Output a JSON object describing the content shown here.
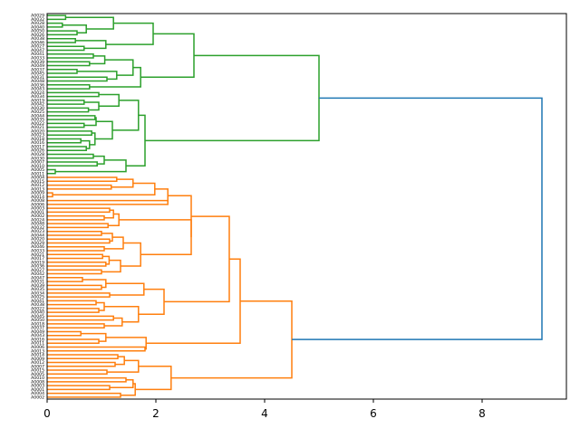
{
  "chart_data": {
    "type": "dendrogram",
    "orientation": "left",
    "title": "",
    "xlabel": "",
    "ylabel": "",
    "xlim": [
      0,
      9.55
    ],
    "x_ticks": [
      0,
      2,
      4,
      6,
      8
    ],
    "x_tick_labels": [
      "0",
      "2",
      "4",
      "6",
      "8"
    ],
    "colors": {
      "cluster_1": "#2ca02c",
      "cluster_2": "#ff7f0e",
      "root": "#1f77b4"
    },
    "leaf_labels": [
      "A0029",
      "A0032",
      "A0028",
      "A0040",
      "A0050",
      "A0026",
      "A0038",
      "A0046",
      "A0027",
      "A0047",
      "A0041",
      "A0033",
      "A0039",
      "A0049",
      "A0037",
      "A0045",
      "A0031",
      "A0048",
      "A0036",
      "A0043",
      "A0024",
      "A0034",
      "A0019",
      "A0042",
      "A0030",
      "A0025",
      "A0044",
      "A0035",
      "A0022",
      "A0021",
      "A0020",
      "A0023",
      "A0018",
      "A0016",
      "A0017",
      "A0026",
      "A0028",
      "A0030",
      "A0007",
      "A0010",
      "A0005",
      "A0011",
      "A0004",
      "A0015",
      "A0012",
      "A0013",
      "A0009",
      "A0014",
      "A0008",
      "A0006",
      "A0003",
      "A0001",
      "A0002",
      "A0024",
      "A0048",
      "A0032",
      "A0023",
      "A0044",
      "A0020",
      "A0029",
      "A0046",
      "A0033",
      "A0021",
      "A0017",
      "A0019",
      "A0036",
      "A0027",
      "A0042",
      "A0047",
      "A0031",
      "A0039",
      "A0035",
      "A0034",
      "A0025",
      "A0041",
      "A0038",
      "A0022",
      "A0040",
      "A0045",
      "A0050",
      "A0018",
      "A0037",
      "A0049",
      "A0043",
      "A0016",
      "A0011",
      "A0006",
      "A0013",
      "A0014",
      "A0009",
      "A0012",
      "A0007",
      "A0015",
      "A0005",
      "A0010",
      "A0008",
      "A0003",
      "A0001",
      "A0004",
      "A0002"
    ],
    "merges": [
      {
        "a": 0,
        "b": 1,
        "height": 0.34,
        "color": "cluster_1"
      },
      {
        "a": 2,
        "b": 3,
        "height": 0.28,
        "color": "cluster_1"
      },
      {
        "a": 4,
        "b": 5,
        "height": 0.55,
        "color": "cluster_1"
      },
      {
        "a": 101,
        "b": 102,
        "height": 0.72,
        "color": "cluster_1"
      },
      {
        "a": 100,
        "b": 103,
        "height": 1.22,
        "color": "cluster_1"
      },
      {
        "a": 6,
        "b": 7,
        "height": 0.52,
        "color": "cluster_1"
      },
      {
        "a": 8,
        "b": 9,
        "height": 0.68,
        "color": "cluster_1"
      },
      {
        "a": 105,
        "b": 106,
        "height": 1.08,
        "color": "cluster_1"
      },
      {
        "a": 104,
        "b": 107,
        "height": 1.95,
        "color": "cluster_1"
      },
      {
        "a": 10,
        "b": 11,
        "height": 0.85,
        "color": "cluster_1"
      },
      {
        "a": 12,
        "b": 13,
        "height": 0.78,
        "color": "cluster_1"
      },
      {
        "a": 109,
        "b": 110,
        "height": 1.06,
        "color": "cluster_1"
      },
      {
        "a": 14,
        "b": 15,
        "height": 0.55,
        "color": "cluster_1"
      },
      {
        "a": 16,
        "b": 17,
        "height": 1.1,
        "color": "cluster_1"
      },
      {
        "a": 112,
        "b": 113,
        "height": 1.28,
        "color": "cluster_1"
      },
      {
        "a": 111,
        "b": 114,
        "height": 1.58,
        "color": "cluster_1"
      },
      {
        "a": 18,
        "b": 19,
        "height": 0.78,
        "color": "cluster_1"
      },
      {
        "a": 115,
        "b": 116,
        "height": 1.72,
        "color": "cluster_1"
      },
      {
        "a": 108,
        "b": 117,
        "height": 2.7,
        "color": "cluster_1"
      },
      {
        "a": 20,
        "b": 21,
        "height": 0.95,
        "color": "cluster_1"
      },
      {
        "a": 22,
        "b": 23,
        "height": 0.68,
        "color": "cluster_1"
      },
      {
        "a": 24,
        "b": 25,
        "height": 0.76,
        "color": "cluster_1"
      },
      {
        "a": 120,
        "b": 121,
        "height": 0.95,
        "color": "cluster_1"
      },
      {
        "a": 119,
        "b": 122,
        "height": 1.32,
        "color": "cluster_1"
      },
      {
        "a": 26,
        "b": 27,
        "height": 0.88,
        "color": "cluster_1"
      },
      {
        "a": 28,
        "b": 29,
        "height": 0.68,
        "color": "cluster_1"
      },
      {
        "a": 124,
        "b": 125,
        "height": 0.9,
        "color": "cluster_1"
      },
      {
        "a": 30,
        "b": 31,
        "height": 0.82,
        "color": "cluster_1"
      },
      {
        "a": 32,
        "b": 33,
        "height": 0.62,
        "color": "cluster_1"
      },
      {
        "a": 34,
        "b": 35,
        "height": 0.72,
        "color": "cluster_1"
      },
      {
        "a": 128,
        "b": 129,
        "height": 0.78,
        "color": "cluster_1"
      },
      {
        "a": 127,
        "b": 130,
        "height": 0.88,
        "color": "cluster_1"
      },
      {
        "a": 126,
        "b": 131,
        "height": 1.2,
        "color": "cluster_1"
      },
      {
        "a": 123,
        "b": 132,
        "height": 1.68,
        "color": "cluster_1"
      },
      {
        "a": 36,
        "b": 37,
        "height": 0.85,
        "color": "cluster_1"
      },
      {
        "a": 38,
        "b": 39,
        "height": 0.92,
        "color": "cluster_1"
      },
      {
        "a": 134,
        "b": 135,
        "height": 1.05,
        "color": "cluster_1"
      },
      {
        "a": 40,
        "b": 41,
        "height": 0.15,
        "color": "cluster_1"
      },
      {
        "a": 136,
        "b": 137,
        "height": 1.45,
        "color": "cluster_1"
      },
      {
        "a": 133,
        "b": 138,
        "height": 1.8,
        "color": "cluster_1"
      },
      {
        "a": 118,
        "b": 139,
        "height": 5.0,
        "color": "cluster_1"
      },
      {
        "a": 42,
        "b": 43,
        "height": 1.28,
        "color": "cluster_2"
      },
      {
        "a": 44,
        "b": 45,
        "height": 1.18,
        "color": "cluster_2"
      },
      {
        "a": 141,
        "b": 142,
        "height": 1.58,
        "color": "cluster_2"
      },
      {
        "a": 46,
        "b": 47,
        "height": 0.1,
        "color": "cluster_2"
      },
      {
        "a": 143,
        "b": 144,
        "height": 1.98,
        "color": "cluster_2"
      },
      {
        "a": 48,
        "b": 49,
        "height": 2.22,
        "color": "cluster_2"
      },
      {
        "a": 145,
        "b": 146,
        "height": 2.22,
        "color": "cluster_2"
      },
      {
        "a": 50,
        "b": 51,
        "height": 1.15,
        "color": "cluster_2"
      },
      {
        "a": 52,
        "b": 53,
        "height": 1.05,
        "color": "cluster_2"
      },
      {
        "a": 148,
        "b": 149,
        "height": 1.22,
        "color": "cluster_2"
      },
      {
        "a": 54,
        "b": 55,
        "height": 1.12,
        "color": "cluster_2"
      },
      {
        "a": 150,
        "b": 151,
        "height": 1.32,
        "color": "cluster_2"
      },
      {
        "a": 56,
        "b": 57,
        "height": 1.0,
        "color": "cluster_2"
      },
      {
        "a": 58,
        "b": 59,
        "height": 1.15,
        "color": "cluster_2"
      },
      {
        "a": 153,
        "b": 154,
        "height": 1.2,
        "color": "cluster_2"
      },
      {
        "a": 60,
        "b": 61,
        "height": 1.05,
        "color": "cluster_2"
      },
      {
        "a": 155,
        "b": 156,
        "height": 1.4,
        "color": "cluster_2"
      },
      {
        "a": 62,
        "b": 63,
        "height": 1.02,
        "color": "cluster_2"
      },
      {
        "a": 64,
        "b": 65,
        "height": 1.08,
        "color": "cluster_2"
      },
      {
        "a": 158,
        "b": 159,
        "height": 1.14,
        "color": "cluster_2"
      },
      {
        "a": 66,
        "b": 67,
        "height": 1.0,
        "color": "cluster_2"
      },
      {
        "a": 160,
        "b": 161,
        "height": 1.35,
        "color": "cluster_2"
      },
      {
        "a": 157,
        "b": 162,
        "height": 1.72,
        "color": "cluster_2"
      },
      {
        "a": 152,
        "b": 163,
        "height": 2.65,
        "color": "cluster_2"
      },
      {
        "a": 147,
        "b": 164,
        "height": 2.65,
        "color": "cluster_2"
      },
      {
        "a": 68,
        "b": 69,
        "height": 0.65,
        "color": "cluster_2"
      },
      {
        "a": 70,
        "b": 71,
        "height": 1.0,
        "color": "cluster_2"
      },
      {
        "a": 166,
        "b": 167,
        "height": 1.08,
        "color": "cluster_2"
      },
      {
        "a": 72,
        "b": 73,
        "height": 1.15,
        "color": "cluster_2"
      },
      {
        "a": 168,
        "b": 169,
        "height": 1.78,
        "color": "cluster_2"
      },
      {
        "a": 74,
        "b": 75,
        "height": 0.9,
        "color": "cluster_2"
      },
      {
        "a": 76,
        "b": 77,
        "height": 0.95,
        "color": "cluster_2"
      },
      {
        "a": 171,
        "b": 172,
        "height": 1.05,
        "color": "cluster_2"
      },
      {
        "a": 78,
        "b": 79,
        "height": 1.22,
        "color": "cluster_2"
      },
      {
        "a": 80,
        "b": 81,
        "height": 1.05,
        "color": "cluster_2"
      },
      {
        "a": 174,
        "b": 175,
        "height": 1.38,
        "color": "cluster_2"
      },
      {
        "a": 173,
        "b": 176,
        "height": 1.68,
        "color": "cluster_2"
      },
      {
        "a": 170,
        "b": 177,
        "height": 2.15,
        "color": "cluster_2"
      },
      {
        "a": 165,
        "b": 178,
        "height": 3.35,
        "color": "cluster_2"
      },
      {
        "a": 82,
        "b": 83,
        "height": 0.62,
        "color": "cluster_2"
      },
      {
        "a": 84,
        "b": 85,
        "height": 0.95,
        "color": "cluster_2"
      },
      {
        "a": 180,
        "b": 181,
        "height": 1.08,
        "color": "cluster_2"
      },
      {
        "a": 86,
        "b": 87,
        "height": 1.8,
        "color": "cluster_2"
      },
      {
        "a": 182,
        "b": 183,
        "height": 1.82,
        "color": "cluster_2"
      },
      {
        "a": 179,
        "b": 184,
        "height": 3.55,
        "color": "cluster_2"
      },
      {
        "a": 88,
        "b": 89,
        "height": 1.3,
        "color": "cluster_2"
      },
      {
        "a": 90,
        "b": 91,
        "height": 1.25,
        "color": "cluster_2"
      },
      {
        "a": 186,
        "b": 187,
        "height": 1.42,
        "color": "cluster_2"
      },
      {
        "a": 92,
        "b": 93,
        "height": 1.1,
        "color": "cluster_2"
      },
      {
        "a": 188,
        "b": 189,
        "height": 1.68,
        "color": "cluster_2"
      },
      {
        "a": 94,
        "b": 95,
        "height": 1.45,
        "color": "cluster_2"
      },
      {
        "a": 96,
        "b": 97,
        "height": 1.15,
        "color": "cluster_2"
      },
      {
        "a": 191,
        "b": 192,
        "height": 1.58,
        "color": "cluster_2"
      },
      {
        "a": 98,
        "b": 99,
        "height": 1.35,
        "color": "cluster_2"
      },
      {
        "a": 193,
        "b": 194,
        "height": 1.62,
        "color": "cluster_2"
      },
      {
        "a": 190,
        "b": 195,
        "height": 2.28,
        "color": "cluster_2"
      },
      {
        "a": 185,
        "b": 196,
        "height": 4.5,
        "color": "cluster_2"
      },
      {
        "a": 140,
        "b": 197,
        "height": 9.1,
        "color": "root"
      }
    ]
  }
}
